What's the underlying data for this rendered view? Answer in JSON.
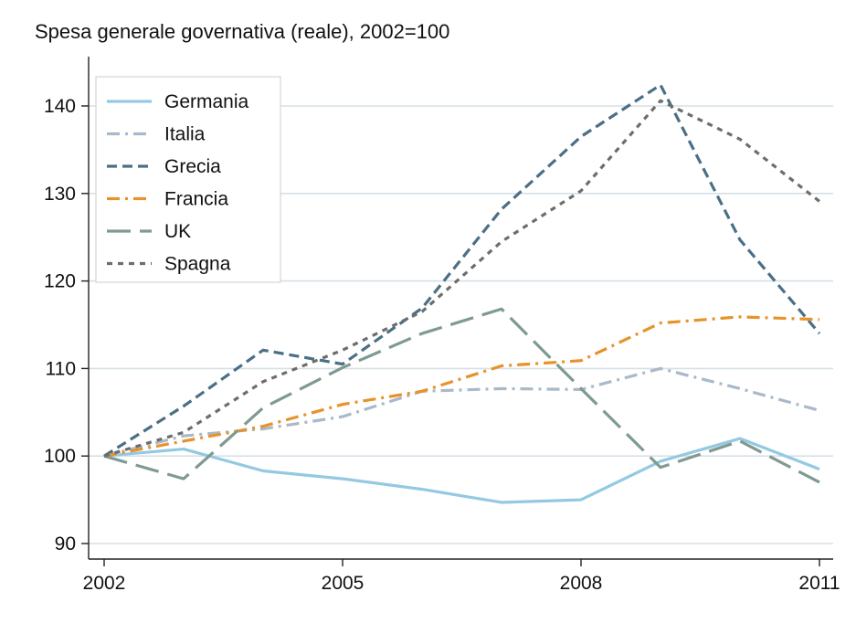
{
  "chart_data": {
    "type": "line",
    "title": "Spesa generale governativa (reale), 2002=100",
    "xlabel": "",
    "ylabel": "",
    "x": [
      2002,
      2003,
      2004,
      2005,
      2006,
      2007,
      2008,
      2009,
      2010,
      2011
    ],
    "x_ticks": [
      "2002",
      "2005",
      "2008",
      "2011"
    ],
    "y_ticks": [
      "90",
      "100",
      "110",
      "120",
      "130",
      "140"
    ],
    "xlim": [
      2002,
      2011
    ],
    "ylim": [
      89,
      145
    ],
    "grid": true,
    "legend_position": "top-left",
    "series": [
      {
        "name": "Germania",
        "color": "#93c9e3",
        "dash": "solid",
        "values": [
          100.0,
          100.8,
          98.3,
          97.4,
          96.2,
          94.7,
          95.0,
          99.4,
          102.0,
          98.5
        ]
      },
      {
        "name": "Italia",
        "color": "#a9b9c9",
        "dash": "dashdot",
        "values": [
          100.0,
          102.3,
          103.1,
          104.5,
          107.4,
          107.7,
          107.6,
          110.0,
          107.7,
          105.2
        ]
      },
      {
        "name": "Grecia",
        "color": "#4a6f86",
        "dash": "dash",
        "values": [
          100.0,
          105.7,
          112.1,
          110.5,
          116.9,
          128.2,
          136.5,
          142.4,
          124.7,
          114.0
        ]
      },
      {
        "name": "Francia",
        "color": "#e7922a",
        "dash": "dashdot",
        "values": [
          100.0,
          101.7,
          103.4,
          105.9,
          107.4,
          110.3,
          110.9,
          115.2,
          115.9,
          115.6
        ]
      },
      {
        "name": "UK",
        "color": "#7f9a92",
        "dash": "longdash",
        "values": [
          100.0,
          97.4,
          105.5,
          110.1,
          114.0,
          116.8,
          107.7,
          98.7,
          101.7,
          97.0
        ]
      },
      {
        "name": "Spagna",
        "color": "#6d6d6d",
        "dash": "shortdash",
        "values": [
          100.0,
          102.7,
          108.5,
          112.1,
          116.5,
          124.5,
          130.3,
          140.6,
          136.2,
          129.1
        ]
      }
    ]
  }
}
